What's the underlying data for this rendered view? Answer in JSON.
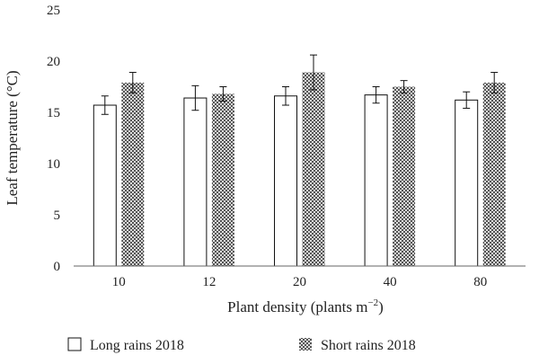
{
  "chart_data": {
    "type": "bar",
    "xlabel": "Plant density (plants m",
    "xlabel_sup": "−2",
    "xlabel_close": ")",
    "ylabel": "Leaf temperature (°C)",
    "categories": [
      "10",
      "12",
      "20",
      "40",
      "80"
    ],
    "ylim": [
      0,
      25
    ],
    "yticks": [
      0,
      5,
      10,
      15,
      20,
      25
    ],
    "grid": false,
    "legend_position": "bottom",
    "series": [
      {
        "name": "Long rains 2018",
        "values": [
          15.7,
          16.4,
          16.6,
          16.7,
          16.2
        ],
        "errors": [
          0.9,
          1.2,
          0.9,
          0.8,
          0.8
        ],
        "fill": "plain"
      },
      {
        "name": "Short rains 2018",
        "values": [
          17.9,
          16.8,
          18.9,
          17.5,
          17.9
        ],
        "errors": [
          1.0,
          0.7,
          1.7,
          0.6,
          1.0
        ],
        "fill": "crosshatch"
      }
    ]
  },
  "colors": {
    "axis": "#666666",
    "bar_stroke": "#111111",
    "bar_fill": "#ffffff",
    "hatch": "#333333"
  }
}
